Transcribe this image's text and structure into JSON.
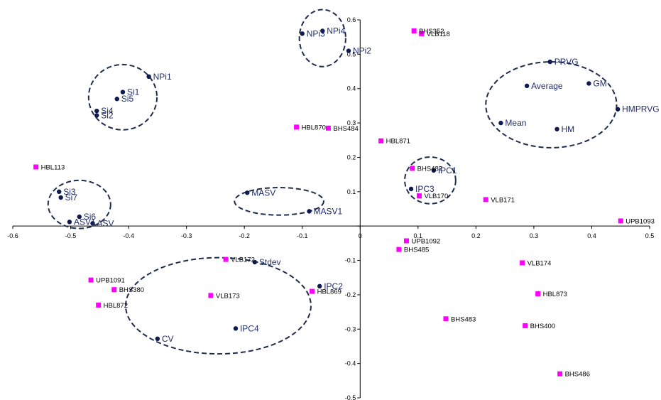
{
  "chart_data": {
    "type": "scatter",
    "title": "",
    "xlabel": "",
    "ylabel": "",
    "xlim": [
      -0.6,
      0.5
    ],
    "ylim": [
      -0.5,
      0.6
    ],
    "grid": false,
    "legend": "none",
    "x_ticks": [
      "-0.6",
      "-0.5",
      "-0.4",
      "-0.3",
      "-0.2",
      "-0.1",
      "0",
      "0.1",
      "0.2",
      "0.3",
      "0.4",
      "0.5"
    ],
    "y_ticks": [
      "-0.5",
      "-0.4",
      "-0.3",
      "-0.2",
      "-0.1",
      "0",
      "0.1",
      "0.2",
      "0.3",
      "0.4",
      "0.5",
      "0.6"
    ],
    "series": [
      {
        "marker": "circle",
        "color": "#0d1a50",
        "label_color": "#1f2d6b",
        "points": [
          {
            "label": "NPi1",
            "x": -0.365,
            "y": 0.435
          },
          {
            "label": "Si1",
            "x": -0.41,
            "y": 0.39
          },
          {
            "label": "Si5",
            "x": -0.42,
            "y": 0.37
          },
          {
            "label": "Si4",
            "x": -0.455,
            "y": 0.335
          },
          {
            "label": "Si2",
            "x": -0.455,
            "y": 0.322
          },
          {
            "label": "NPi3",
            "x": -0.1,
            "y": 0.56
          },
          {
            "label": "NPi4",
            "x": -0.065,
            "y": 0.568
          },
          {
            "label": "NPi2",
            "x": -0.02,
            "y": 0.51
          },
          {
            "label": "PRVG",
            "x": 0.328,
            "y": 0.478
          },
          {
            "label": "Average",
            "x": 0.288,
            "y": 0.408
          },
          {
            "label": "GM",
            "x": 0.395,
            "y": 0.415
          },
          {
            "label": "HMPRVG",
            "x": 0.445,
            "y": 0.34
          },
          {
            "label": "Mean",
            "x": 0.243,
            "y": 0.3
          },
          {
            "label": "HM",
            "x": 0.34,
            "y": 0.282
          },
          {
            "label": "IPC1",
            "x": 0.127,
            "y": 0.162
          },
          {
            "label": "IPC3",
            "x": 0.088,
            "y": 0.108
          },
          {
            "label": "Si3",
            "x": -0.52,
            "y": 0.1
          },
          {
            "label": "Si7",
            "x": -0.517,
            "y": 0.083
          },
          {
            "label": "ASV1",
            "x": -0.502,
            "y": 0.012
          },
          {
            "label": "Si6",
            "x": -0.485,
            "y": 0.027
          },
          {
            "label": "ASV",
            "x": -0.462,
            "y": 0.008
          },
          {
            "label": "MASV",
            "x": -0.195,
            "y": 0.097
          },
          {
            "label": "MASV1",
            "x": -0.088,
            "y": 0.043
          },
          {
            "label": "Stdev",
            "x": -0.182,
            "y": -0.105
          },
          {
            "label": "IPC2",
            "x": -0.07,
            "y": -0.175
          },
          {
            "label": "IPC4",
            "x": -0.215,
            "y": -0.298
          },
          {
            "label": "CV",
            "x": -0.35,
            "y": -0.328
          }
        ]
      },
      {
        "marker": "square",
        "color": "#ff00ff",
        "label_color": "#000000",
        "points": [
          {
            "label": "BHS352",
            "x": 0.093,
            "y": 0.568
          },
          {
            "label": "VLB118",
            "x": 0.106,
            "y": 0.56
          },
          {
            "label": "HBL870",
            "x": -0.11,
            "y": 0.288
          },
          {
            "label": "BHS484",
            "x": -0.055,
            "y": 0.285
          },
          {
            "label": "HBL871",
            "x": 0.036,
            "y": 0.248
          },
          {
            "label": "HBL113",
            "x": -0.56,
            "y": 0.172
          },
          {
            "label": "BHS487",
            "x": 0.09,
            "y": 0.168
          },
          {
            "label": "VLB170",
            "x": 0.102,
            "y": 0.088
          },
          {
            "label": "VLB171",
            "x": 0.217,
            "y": 0.077
          },
          {
            "label": "UPB1093",
            "x": 0.45,
            "y": 0.015
          },
          {
            "label": "UPB1092",
            "x": 0.08,
            "y": -0.043
          },
          {
            "label": "BHS485",
            "x": 0.067,
            "y": -0.068
          },
          {
            "label": "VLB172",
            "x": -0.232,
            "y": -0.097
          },
          {
            "label": "VLB174",
            "x": 0.28,
            "y": -0.107
          },
          {
            "label": "UPB1091",
            "x": -0.465,
            "y": -0.157
          },
          {
            "label": "BHS380",
            "x": -0.425,
            "y": -0.185
          },
          {
            "label": "HBL869",
            "x": -0.083,
            "y": -0.19
          },
          {
            "label": "HBL873",
            "x": 0.307,
            "y": -0.197
          },
          {
            "label": "VLB173",
            "x": -0.258,
            "y": -0.202
          },
          {
            "label": "HBL872",
            "x": -0.452,
            "y": -0.23
          },
          {
            "label": "BHS483",
            "x": 0.148,
            "y": -0.27
          },
          {
            "label": "BHS400",
            "x": 0.285,
            "y": -0.29
          },
          {
            "label": "BHS486",
            "x": 0.345,
            "y": -0.43
          }
        ]
      }
    ],
    "cluster_ellipses": [
      {
        "cx": -0.41,
        "cy": 0.375,
        "rx": 0.059,
        "ry": 0.095
      },
      {
        "cx": -0.065,
        "cy": 0.547,
        "rx": 0.04,
        "ry": 0.083
      },
      {
        "cx": 0.33,
        "cy": 0.353,
        "rx": 0.113,
        "ry": 0.125
      },
      {
        "cx": 0.121,
        "cy": 0.133,
        "rx": 0.044,
        "ry": 0.068
      },
      {
        "cx": -0.485,
        "cy": 0.063,
        "rx": 0.054,
        "ry": 0.07
      },
      {
        "cx": -0.14,
        "cy": 0.072,
        "rx": 0.077,
        "ry": 0.04
      },
      {
        "cx": -0.245,
        "cy": -0.232,
        "rx": 0.16,
        "ry": 0.14
      }
    ]
  }
}
